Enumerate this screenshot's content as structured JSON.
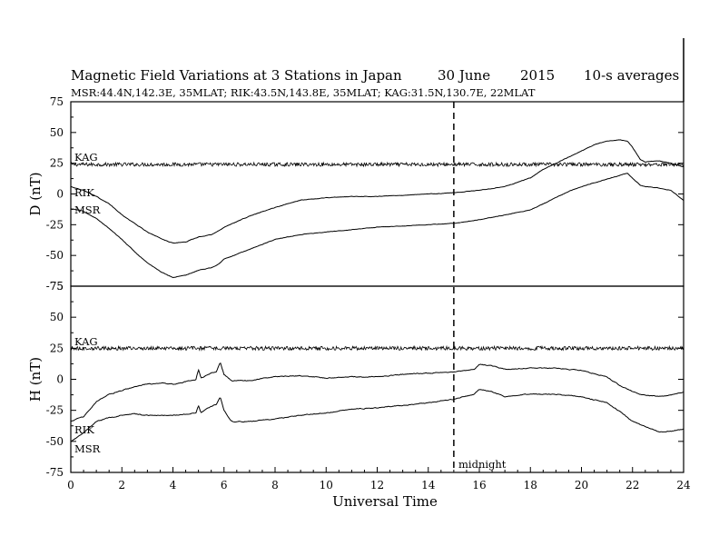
{
  "chart_data": {
    "type": "line",
    "title_parts": [
      "Magnetic Field Variations at 3 Stations in Japan",
      "30 June",
      "2015",
      "10-s averages"
    ],
    "subtitle": "MSR:44.4N,142.3E, 35MLAT;  RIK:43.5N,143.8E, 35MLAT;  KAG:31.5N,130.7E, 22MLAT",
    "xlabel": "Universal Time",
    "xlim": [
      0,
      24
    ],
    "x_ticks": [
      0,
      2,
      4,
      6,
      8,
      10,
      12,
      14,
      16,
      18,
      20,
      22,
      24
    ],
    "midnight_label": "midnight",
    "midnight_ut": 15,
    "panels": [
      {
        "ylabel": "D (nT)",
        "ylim": [
          -75,
          75
        ],
        "y_ticks": [
          75,
          50,
          25,
          0,
          -25,
          -50,
          -75
        ],
        "series": [
          {
            "name": "KAG",
            "noise_amplitude": 1.5,
            "x": [
              0,
              24
            ],
            "y": [
              24,
              24
            ]
          },
          {
            "name": "RIK",
            "noise_amplitude": 0.4,
            "x": [
              0,
              0.5,
              1,
              1.5,
              2,
              2.5,
              3,
              3.5,
              4,
              4.5,
              5,
              5.5,
              5.8,
              6,
              7,
              8,
              9,
              10,
              11,
              12,
              13,
              14,
              15,
              16,
              17,
              18,
              18.5,
              19,
              19.5,
              20,
              20.5,
              21,
              21.5,
              21.8,
              22,
              22.3,
              22.5,
              23,
              23.5,
              24
            ],
            "y": [
              6,
              3,
              -2,
              -8,
              -17,
              -24,
              -31,
              -36,
              -40,
              -39,
              -35,
              -33,
              -30,
              -27,
              -18,
              -11,
              -5,
              -3,
              -2,
              -2,
              -1,
              0,
              1,
              3,
              6,
              13,
              20,
              25,
              30,
              35,
              40,
              43,
              44,
              43,
              38,
              28,
              26,
              27,
              25,
              22
            ]
          },
          {
            "name": "MSR",
            "noise_amplitude": 0.4,
            "x": [
              0,
              0.5,
              1,
              1.5,
              2,
              2.5,
              3,
              3.5,
              4,
              4.5,
              5,
              5.5,
              5.8,
              6,
              7,
              8,
              9,
              10,
              11,
              12,
              13,
              14,
              15,
              16,
              17,
              18,
              18.5,
              19,
              19.5,
              20,
              20.5,
              21,
              21.5,
              21.8,
              22,
              22.3,
              22.5,
              23,
              23.5,
              24
            ],
            "y": [
              -12,
              -14,
              -20,
              -28,
              -37,
              -47,
              -56,
              -63,
              -68,
              -66,
              -62,
              -60,
              -57,
              -53,
              -45,
              -37,
              -33,
              -31,
              -29,
              -27,
              -26,
              -25,
              -24,
              -21,
              -17,
              -13,
              -8,
              -3,
              2,
              6,
              9,
              12,
              15,
              17,
              13,
              7,
              6,
              5,
              3,
              -5
            ]
          }
        ]
      },
      {
        "ylabel": "H (nT)",
        "ylim": [
          -75,
          75
        ],
        "y_ticks": [
          75,
          50,
          25,
          0,
          -25,
          -50,
          -75
        ],
        "series": [
          {
            "name": "KAG",
            "noise_amplitude": 1.5,
            "x": [
              0,
              24
            ],
            "y": [
              25,
              25
            ]
          },
          {
            "name": "RIK",
            "noise_amplitude": 0.7,
            "x": [
              0,
              0.5,
              1,
              1.5,
              2,
              2.5,
              3,
              3.5,
              4,
              4.5,
              4.9,
              5,
              5.1,
              5.3,
              5.5,
              5.7,
              5.85,
              6,
              6.3,
              7,
              8,
              9,
              10,
              11,
              12,
              13,
              14,
              15,
              15.8,
              16,
              16.5,
              17,
              18,
              19,
              20,
              21,
              21.5,
              22,
              22.5,
              23,
              23.5,
              24
            ],
            "y": [
              -34,
              -30,
              -18,
              -12,
              -9,
              -6,
              -4,
              -3,
              -4,
              -2,
              0,
              8,
              1,
              3,
              5,
              6,
              14,
              4,
              -1,
              -1,
              2,
              3,
              1,
              2,
              2,
              4,
              5,
              6,
              8,
              12,
              11,
              8,
              9,
              9,
              7,
              2,
              -5,
              -10,
              -13,
              -14,
              -13,
              -10
            ]
          },
          {
            "name": "MSR",
            "noise_amplitude": 0.7,
            "x": [
              0,
              0.5,
              1,
              1.5,
              2,
              2.5,
              3,
              3.5,
              4,
              4.5,
              4.9,
              5,
              5.1,
              5.3,
              5.5,
              5.7,
              5.85,
              6,
              6.3,
              7,
              8,
              9,
              10,
              11,
              12,
              13,
              14,
              15,
              15.8,
              16,
              16.5,
              17,
              18,
              19,
              20,
              21,
              21.5,
              22,
              22.5,
              23,
              23.5,
              24
            ],
            "y": [
              -50,
              -43,
              -34,
              -31,
              -29,
              -28,
              -29,
              -29,
              -29,
              -28,
              -27,
              -21,
              -27,
              -24,
              -22,
              -20,
              -14,
              -25,
              -34,
              -34,
              -32,
              -29,
              -27,
              -24,
              -23,
              -21,
              -19,
              -16,
              -12,
              -8,
              -10,
              -14,
              -12,
              -12,
              -14,
              -19,
              -26,
              -34,
              -38,
              -42,
              -42,
              -40
            ]
          }
        ]
      }
    ]
  }
}
